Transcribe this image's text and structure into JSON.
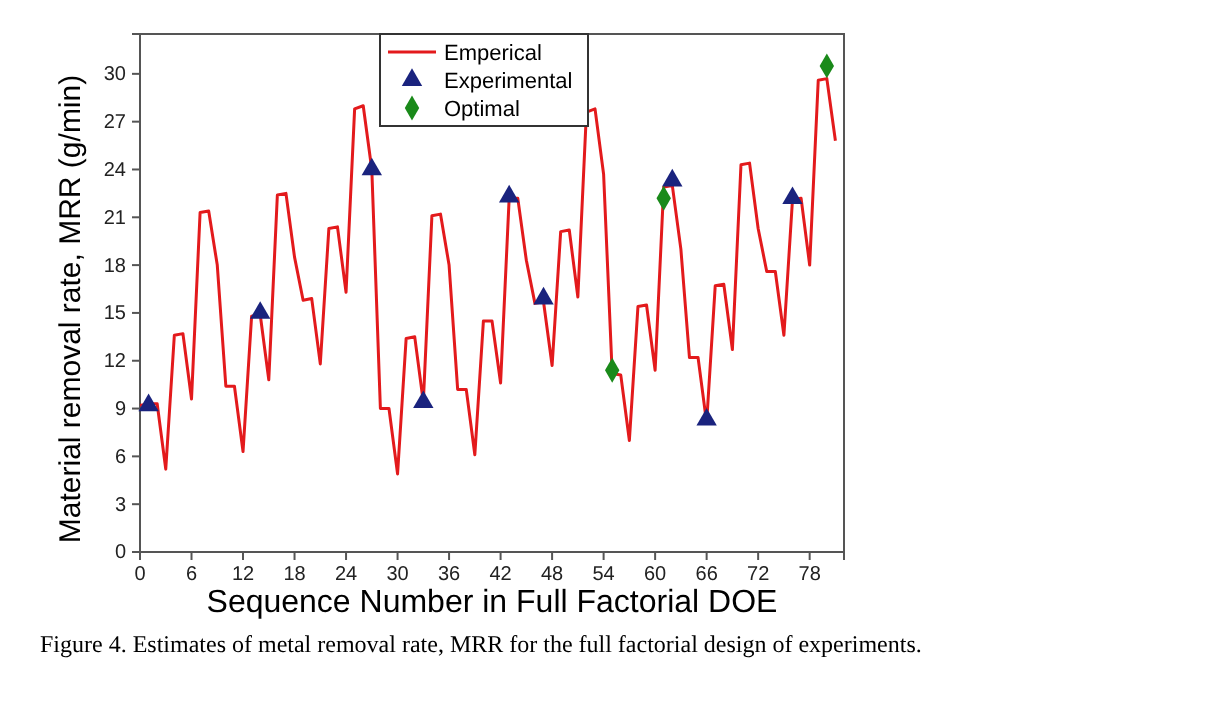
{
  "chart_data": {
    "type": "line",
    "xlabel": "Sequence Number in Full Factorial DOE",
    "ylabel": "Material removal rate, MRR (g/min)",
    "xlim": [
      0,
      82
    ],
    "xticks": [
      0,
      6,
      12,
      18,
      24,
      30,
      36,
      42,
      48,
      54,
      60,
      66,
      72,
      78
    ],
    "ylim": [
      0,
      32.5
    ],
    "yticks": [
      0,
      3,
      6,
      9,
      12,
      15,
      18,
      21,
      24,
      27,
      30
    ],
    "legend": "top",
    "grid": false,
    "annotations": [
      "Figure 4. Estimates of metal removal rate, MRR for the full factorial design of experiments."
    ],
    "series": [
      {
        "name": "Emperical",
        "color": "#e31a1c",
        "marker": "none",
        "x": [
          0,
          1,
          2,
          3,
          4,
          5,
          6,
          7,
          8,
          9,
          10,
          11,
          12,
          13,
          14,
          15,
          16,
          17,
          18,
          19,
          20,
          21,
          22,
          23,
          24,
          25,
          26,
          27,
          28,
          29,
          30,
          31,
          32,
          33,
          34,
          35,
          36,
          37,
          38,
          39,
          40,
          41,
          42,
          43,
          44,
          45,
          46,
          47,
          48,
          49,
          50,
          51,
          52,
          53,
          54,
          55,
          56,
          57,
          58,
          59,
          60,
          61,
          62,
          63,
          64,
          65,
          66,
          67,
          68,
          69,
          70,
          71,
          72,
          73,
          74,
          75,
          76,
          77,
          78,
          79,
          80,
          81
        ],
        "values": [
          9.2,
          9.3,
          9.3,
          5.2,
          13.6,
          13.7,
          9.6,
          21.3,
          21.4,
          18,
          10.4,
          10.4,
          6.3,
          14.8,
          14.9,
          10.8,
          22.4,
          22.5,
          18.5,
          15.8,
          15.9,
          11.8,
          20.3,
          20.4,
          16.3,
          27.8,
          28,
          24,
          9,
          9,
          4.9,
          13.4,
          13.5,
          9.4,
          21.1,
          21.2,
          18,
          10.2,
          10.2,
          6.1,
          14.5,
          14.5,
          10.6,
          22.2,
          22.2,
          18.3,
          15.6,
          15.7,
          11.7,
          20.1,
          20.2,
          16,
          27.6,
          27.8,
          23.7,
          11.2,
          11.1,
          7,
          15.4,
          15.5,
          11.4,
          22.9,
          23,
          19,
          12.2,
          12.2,
          8.1,
          16.7,
          16.8,
          12.7,
          24.3,
          24.4,
          20.3,
          17.6,
          17.6,
          13.6,
          22.1,
          22.2,
          18,
          29.6,
          29.7,
          25.8
        ]
      },
      {
        "name": "Experimental",
        "type": "scatter",
        "color": "#1a237e",
        "marker": "triangle",
        "x": [
          1,
          14,
          27,
          33,
          43,
          47,
          62,
          66,
          76
        ],
        "values": [
          9.2,
          15,
          24,
          9.4,
          22.3,
          15.9,
          23.3,
          8.3,
          22.2
        ]
      },
      {
        "name": "Optimal",
        "type": "scatter",
        "color": "#1a8a1a",
        "marker": "diamond",
        "x": [
          55,
          61,
          80
        ],
        "values": [
          11.4,
          22.2,
          30.5
        ]
      }
    ]
  }
}
